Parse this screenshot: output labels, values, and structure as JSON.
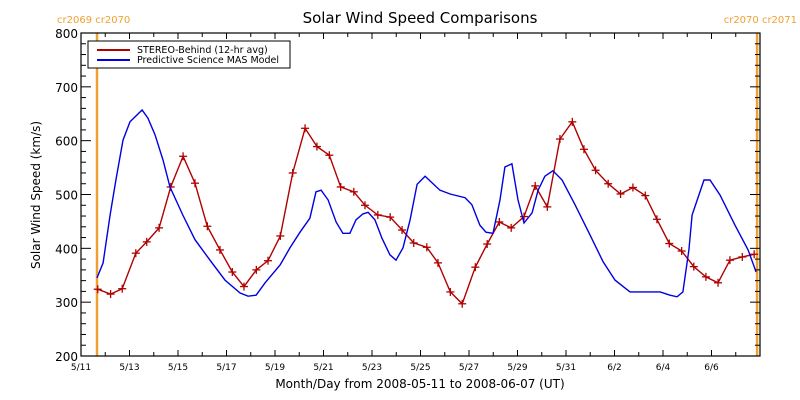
{
  "chart_data": {
    "type": "line",
    "title": "Solar Wind Speed Comparisons",
    "xlabel": "Month/Day from 2008-05-11 to 2008-06-07 (UT)",
    "ylabel": "Solar Wind Speed (km/s)",
    "ylim": [
      200,
      800
    ],
    "yticks": [
      200,
      300,
      400,
      500,
      600,
      700,
      800
    ],
    "xlim_days": [
      0,
      28
    ],
    "x_unit": "days since 2008-05-11 00:00 UT",
    "xticks": [
      {
        "day": 0,
        "label": "5/11"
      },
      {
        "day": 2,
        "label": "5/13"
      },
      {
        "day": 4,
        "label": "5/15"
      },
      {
        "day": 6,
        "label": "5/17"
      },
      {
        "day": 8,
        "label": "5/19"
      },
      {
        "day": 10,
        "label": "5/21"
      },
      {
        "day": 12,
        "label": "5/23"
      },
      {
        "day": 14,
        "label": "5/25"
      },
      {
        "day": 16,
        "label": "5/27"
      },
      {
        "day": 18,
        "label": "5/29"
      },
      {
        "day": 20,
        "label": "5/31"
      },
      {
        "day": 22,
        "label": "6/2"
      },
      {
        "day": 24,
        "label": "6/4"
      },
      {
        "day": 26,
        "label": "6/6"
      }
    ],
    "grid": false,
    "legend_position": "top-left",
    "carrington_markers": [
      {
        "day": 0.66,
        "label": "cr2069 cr2070",
        "color": "#f0a030"
      },
      {
        "day": 27.88,
        "label": "cr2070 cr2071",
        "color": "#f0a030"
      }
    ],
    "series": [
      {
        "name": "STEREO-Behind (12-hr avg)",
        "color": "#b00000",
        "marker": "plus",
        "x": [
          0.69,
          1.22,
          1.7,
          2.26,
          2.71,
          3.22,
          3.7,
          4.21,
          4.7,
          5.21,
          5.73,
          6.24,
          6.72,
          7.23,
          7.71,
          8.22,
          8.73,
          9.24,
          9.73,
          10.24,
          10.71,
          11.25,
          11.71,
          12.24,
          12.75,
          13.24,
          13.72,
          14.26,
          14.72,
          15.23,
          15.72,
          16.26,
          16.75,
          17.25,
          17.74,
          18.27,
          18.73,
          19.23,
          19.75,
          20.26,
          20.74,
          21.22,
          21.74,
          22.25,
          22.76,
          23.27,
          23.75,
          24.26,
          24.77,
          25.27,
          25.77,
          26.27,
          26.76,
          27.27,
          27.76
        ],
        "values": [
          324,
          315,
          325,
          391,
          412,
          438,
          514,
          571,
          521,
          441,
          397,
          356,
          329,
          360,
          377,
          423,
          540,
          623,
          589,
          573,
          514,
          505,
          480,
          462,
          458,
          434,
          410,
          402,
          373,
          319,
          297,
          365,
          408,
          449,
          438,
          459,
          516,
          477,
          603,
          635,
          584,
          545,
          520,
          501,
          513,
          498,
          454,
          409,
          395,
          366,
          347,
          336,
          378,
          384,
          389
        ]
      },
      {
        "name": "Predictive Science MAS Model",
        "color": "#0000e0",
        "marker": "none",
        "x": [
          0.66,
          0.91,
          1.2,
          1.44,
          1.73,
          2.02,
          2.52,
          2.76,
          3.05,
          3.38,
          3.67,
          4.2,
          4.7,
          5.32,
          5.94,
          6.56,
          6.89,
          7.22,
          7.59,
          8.21,
          8.62,
          9.03,
          9.44,
          9.69,
          9.9,
          10.19,
          10.52,
          10.8,
          11.09,
          11.34,
          11.63,
          11.84,
          12.12,
          12.41,
          12.74,
          12.99,
          13.28,
          13.57,
          13.86,
          14.19,
          14.8,
          15.22,
          15.84,
          16.12,
          16.45,
          16.7,
          16.99,
          17.28,
          17.48,
          17.77,
          18.02,
          18.27,
          18.6,
          18.85,
          19.13,
          19.46,
          19.84,
          20.37,
          20.99,
          21.53,
          22.02,
          22.64,
          23.26,
          23.88,
          24.29,
          24.58,
          24.82,
          25.07,
          25.2,
          25.69,
          25.94,
          26.35,
          26.97,
          27.51,
          27.84
        ],
        "values": [
          345,
          373,
          462,
          527,
          601,
          635,
          657,
          642,
          611,
          564,
          514,
          462,
          416,
          378,
          341,
          317,
          311,
          313,
          336,
          369,
          401,
          430,
          456,
          505,
          508,
          490,
          449,
          428,
          428,
          453,
          464,
          467,
          453,
          419,
          388,
          378,
          401,
          453,
          519,
          534,
          508,
          501,
          494,
          481,
          443,
          430,
          428,
          490,
          551,
          557,
          490,
          447,
          466,
          508,
          534,
          544,
          527,
          481,
          425,
          375,
          341,
          319,
          319,
          319,
          313,
          310,
          319,
          397,
          462,
          527,
          527,
          499,
          443,
          397,
          356
        ]
      }
    ]
  }
}
